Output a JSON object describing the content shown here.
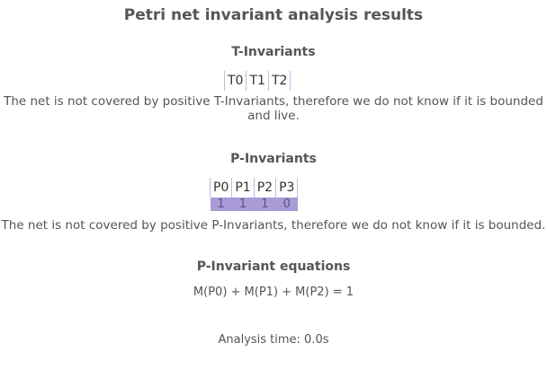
{
  "title": "Petri net invariant analysis results",
  "t_invariants": {
    "heading": "T-Invariants",
    "columns": [
      "T0",
      "T1",
      "T2"
    ],
    "note": "The net is not covered by positive T-Invariants, therefore we do not know if it is bounded and live."
  },
  "p_invariants": {
    "heading": "P-Invariants",
    "columns": [
      "P0",
      "P1",
      "P2",
      "P3"
    ],
    "rows": [
      [
        "1",
        "1",
        "1",
        "0"
      ]
    ],
    "row_color": "#a99ad8",
    "note": "The net is not covered by positive P-Invariants, therefore we do not know if it is bounded."
  },
  "p_equations": {
    "heading": "P-Invariant equations",
    "equations": [
      "M(P0) + M(P1) + M(P2) = 1"
    ]
  },
  "analysis_time": "Analysis time: 0.0s"
}
